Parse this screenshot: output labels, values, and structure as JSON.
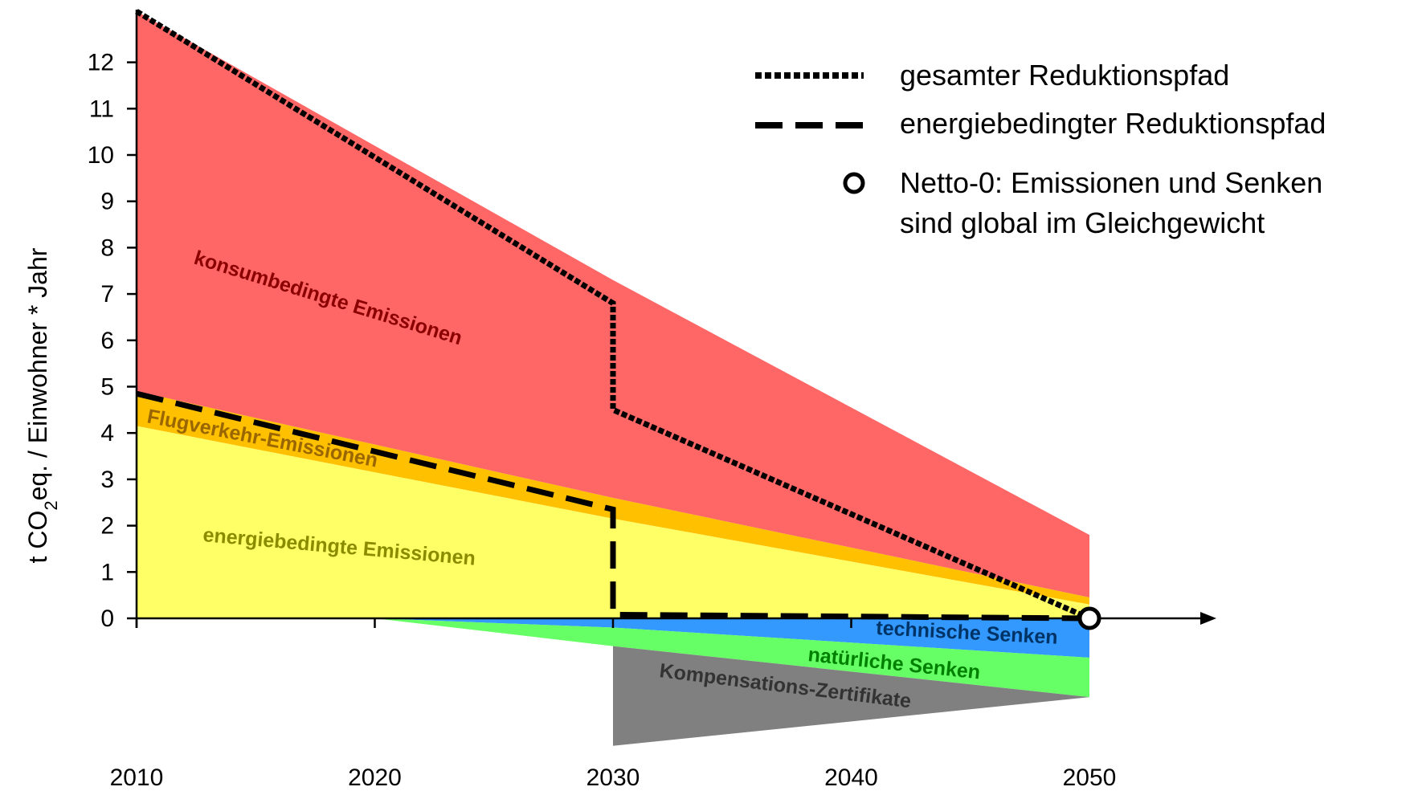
{
  "chart_data": {
    "type": "area",
    "x_ticks": [
      2010,
      2020,
      2030,
      2040,
      2050
    ],
    "y_ticks": [
      0,
      1,
      2,
      3,
      4,
      5,
      6,
      7,
      8,
      9,
      10,
      11,
      12
    ],
    "xlim": [
      2010,
      2055
    ],
    "ylim": [
      -3,
      13
    ],
    "ylabel": {
      "prefix": "t CO",
      "sub": "2",
      "suffix": "eq. / Einwohner * Jahr"
    },
    "grid": false,
    "legend_position": "top-right",
    "areas": [
      {
        "name": "konsumbedingte Emissionen",
        "color": "#ff6666",
        "label_color": "#8b0000",
        "upper": [
          [
            2010,
            13.1
          ],
          [
            2030,
            7.3
          ],
          [
            2050,
            1.8
          ]
        ],
        "lower": [
          [
            2010,
            4.9
          ],
          [
            2030,
            2.6
          ],
          [
            2050,
            0.45
          ]
        ]
      },
      {
        "name": "Flugverkehr-Emissionen",
        "color": "#ffc000",
        "label_color": "#996600",
        "upper": [
          [
            2010,
            4.9
          ],
          [
            2030,
            2.6
          ],
          [
            2050,
            0.45
          ]
        ],
        "lower": [
          [
            2010,
            4.15
          ],
          [
            2030,
            2.15
          ],
          [
            2050,
            0.3
          ]
        ]
      },
      {
        "name": "energiebedingte Emissionen",
        "color": "#ffff66",
        "label_color": "#8b8b00",
        "upper": [
          [
            2010,
            4.15
          ],
          [
            2030,
            2.15
          ],
          [
            2050,
            0.3
          ]
        ],
        "lower": [
          [
            2010,
            0
          ],
          [
            2050,
            0
          ]
        ]
      },
      {
        "name": "technische Senken",
        "color": "#3399ff",
        "label_color": "#003366",
        "upper": [
          [
            2020,
            0
          ],
          [
            2050,
            0
          ]
        ],
        "lower": [
          [
            2020,
            0
          ],
          [
            2030,
            -0.2
          ],
          [
            2050,
            -0.85
          ]
        ]
      },
      {
        "name": "natürliche Senken",
        "color": "#66ff66",
        "label_color": "#008000",
        "upper": [
          [
            2020,
            0
          ],
          [
            2030,
            -0.2
          ],
          [
            2050,
            -0.85
          ]
        ],
        "lower": [
          [
            2020,
            0
          ],
          [
            2030,
            -0.6
          ],
          [
            2050,
            -1.7
          ]
        ]
      },
      {
        "name": "Kompensations-Zertifikate",
        "color": "#808080",
        "label_color": "#333333",
        "upper": [
          [
            2030,
            -0.6
          ],
          [
            2050,
            -1.7
          ]
        ],
        "lower": [
          [
            2030,
            -2.75
          ],
          [
            2050,
            -1.7
          ]
        ]
      }
    ],
    "series": [
      {
        "name": "gesamter Reduktionspfad",
        "style": "dotted",
        "points": [
          [
            2010,
            13.1
          ],
          [
            2030,
            6.8
          ],
          [
            2030,
            4.5
          ],
          [
            2050,
            0
          ]
        ]
      },
      {
        "name": "energiebedingter Reduktionspfad",
        "style": "dashed",
        "points": [
          [
            2010,
            4.85
          ],
          [
            2030,
            2.35
          ],
          [
            2030,
            0.08
          ],
          [
            2050,
            0
          ]
        ]
      }
    ],
    "marker": {
      "name": "Netto-0: Emissionen und Senken sind global im Gleichgewicht",
      "lines": [
        "Netto-0: Emissionen und Senken",
        "sind global im Gleichgewicht"
      ],
      "point": [
        2050,
        0
      ]
    }
  }
}
